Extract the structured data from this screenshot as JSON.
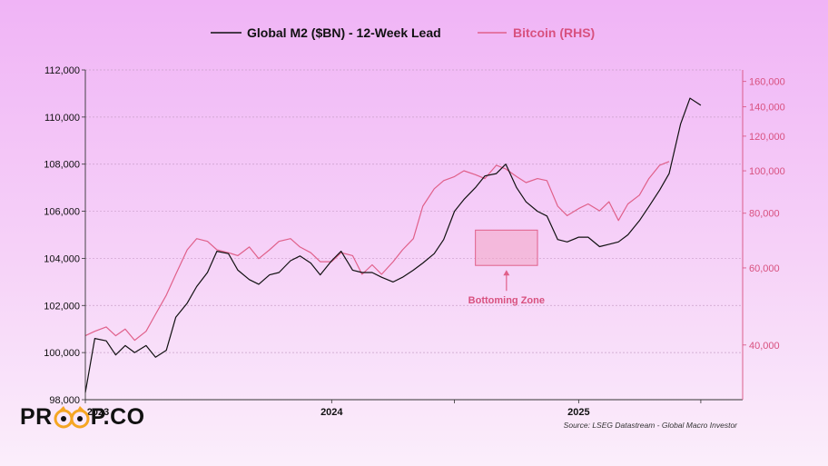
{
  "colors": {
    "m2": "#111111",
    "btc": "#e0608a",
    "zone_fill": "#f3a6c4",
    "axis_right": "#d8517f",
    "grid": "#c9a0c9"
  },
  "chart_data": {
    "type": "line",
    "legend": {
      "placement": "top-center",
      "entries": [
        "Global M2 ($BN) - 12-Week Lead",
        "Bitcoin (RHS)"
      ]
    },
    "x_tick_labels": [
      "2023",
      "2024",
      "2025"
    ],
    "y_left": {
      "label": "",
      "ylim": [
        98000,
        112000
      ],
      "ticks": [
        "98,000",
        "100,000",
        "102,000",
        "104,000",
        "106,000",
        "108,000",
        "110,000",
        "112,000"
      ]
    },
    "y_right": {
      "label": "",
      "scale": "log",
      "ylim": [
        30000,
        170000
      ],
      "ticks": [
        "40,000",
        "60,000",
        "80,000",
        "100,000",
        "120,000",
        "140,000",
        "160,000"
      ]
    },
    "grid": true,
    "series": [
      {
        "name": "Global M2 ($BN) - 12-Week Lead",
        "axis": "left",
        "x": [
          "2023-01-01",
          "2023-01-15",
          "2023-02-01",
          "2023-02-15",
          "2023-03-01",
          "2023-03-15",
          "2023-04-01",
          "2023-04-15",
          "2023-05-01",
          "2023-05-15",
          "2023-06-01",
          "2023-06-15",
          "2023-07-01",
          "2023-07-15",
          "2023-08-01",
          "2023-08-15",
          "2023-09-01",
          "2023-09-15",
          "2023-10-01",
          "2023-10-15",
          "2023-11-01",
          "2023-11-15",
          "2023-12-01",
          "2023-12-15",
          "2024-01-01",
          "2024-01-15",
          "2024-02-01",
          "2024-02-15",
          "2024-03-01",
          "2024-03-15",
          "2024-04-01",
          "2024-04-15",
          "2024-05-01",
          "2024-05-15",
          "2024-06-01",
          "2024-06-15",
          "2024-07-01",
          "2024-07-15",
          "2024-08-01",
          "2024-08-15",
          "2024-09-01",
          "2024-09-15",
          "2024-10-01",
          "2024-10-15",
          "2024-11-01",
          "2024-11-15",
          "2024-12-01",
          "2024-12-15",
          "2025-01-01",
          "2025-01-15",
          "2025-02-01",
          "2025-02-15",
          "2025-03-01",
          "2025-03-15",
          "2025-04-01",
          "2025-04-15",
          "2025-05-01",
          "2025-05-15",
          "2025-06-01",
          "2025-06-15",
          "2025-07-01"
        ],
        "values": [
          98300,
          100600,
          100500,
          99900,
          100300,
          100000,
          100300,
          99800,
          100100,
          101500,
          102100,
          102800,
          103400,
          104300,
          104200,
          103500,
          103100,
          102900,
          103300,
          103400,
          103900,
          104100,
          103800,
          103300,
          103900,
          104300,
          103500,
          103400,
          103400,
          103200,
          103000,
          103200,
          103500,
          103800,
          104200,
          104800,
          106000,
          106500,
          107000,
          107500,
          107600,
          108000,
          107000,
          106400,
          106000,
          105800,
          104800,
          104700,
          104900,
          104900,
          104500,
          104600,
          104700,
          105000,
          105600,
          106200,
          106900,
          107600,
          109700,
          110800,
          110500
        ]
      },
      {
        "name": "Bitcoin (RHS)",
        "axis": "right",
        "x": [
          "2023-01-01",
          "2023-01-15",
          "2023-02-01",
          "2023-02-15",
          "2023-03-01",
          "2023-03-15",
          "2023-04-01",
          "2023-04-15",
          "2023-05-01",
          "2023-05-15",
          "2023-06-01",
          "2023-06-15",
          "2023-07-01",
          "2023-07-15",
          "2023-08-01",
          "2023-08-15",
          "2023-09-01",
          "2023-09-15",
          "2023-10-01",
          "2023-10-15",
          "2023-11-01",
          "2023-11-15",
          "2023-12-01",
          "2023-12-15",
          "2024-01-01",
          "2024-01-15",
          "2024-02-01",
          "2024-02-15",
          "2024-03-01",
          "2024-03-15",
          "2024-04-01",
          "2024-04-15",
          "2024-05-01",
          "2024-05-15",
          "2024-06-01",
          "2024-06-15",
          "2024-07-01",
          "2024-07-15",
          "2024-08-01",
          "2024-08-15",
          "2024-09-01",
          "2024-09-15",
          "2024-10-01",
          "2024-10-15",
          "2024-11-01",
          "2024-11-15",
          "2024-12-01",
          "2024-12-15",
          "2025-01-01",
          "2025-01-15",
          "2025-02-01",
          "2025-02-15",
          "2025-03-01",
          "2025-03-15",
          "2025-04-01",
          "2025-04-15",
          "2025-05-01",
          "2025-05-15"
        ],
        "values": [
          42000,
          43000,
          44000,
          42000,
          43500,
          41000,
          43000,
          47000,
          52000,
          58000,
          66000,
          70000,
          69000,
          66000,
          65000,
          64000,
          67000,
          63000,
          66000,
          69000,
          70000,
          67000,
          65000,
          62000,
          62000,
          65000,
          64000,
          58000,
          61000,
          58000,
          62000,
          66000,
          70000,
          83000,
          91000,
          95000,
          97000,
          100000,
          98000,
          96000,
          103000,
          101000,
          97000,
          94000,
          96000,
          95000,
          83000,
          79000,
          82000,
          84000,
          81000,
          85000,
          77000,
          84000,
          88000,
          96000,
          103000,
          105000
        ]
      }
    ],
    "annotations": [
      {
        "text": "Bottoming Zone",
        "x_range": [
          "2024-08-01",
          "2024-11-01"
        ],
        "y_range": [
          103700,
          105200
        ]
      }
    ]
  },
  "footer": {
    "logo_left": "PR",
    "logo_right": "P.CO",
    "logo_icon": "owl-eyes-icon",
    "source": "Source: LSEG Datastream - Global Macro Investor"
  }
}
